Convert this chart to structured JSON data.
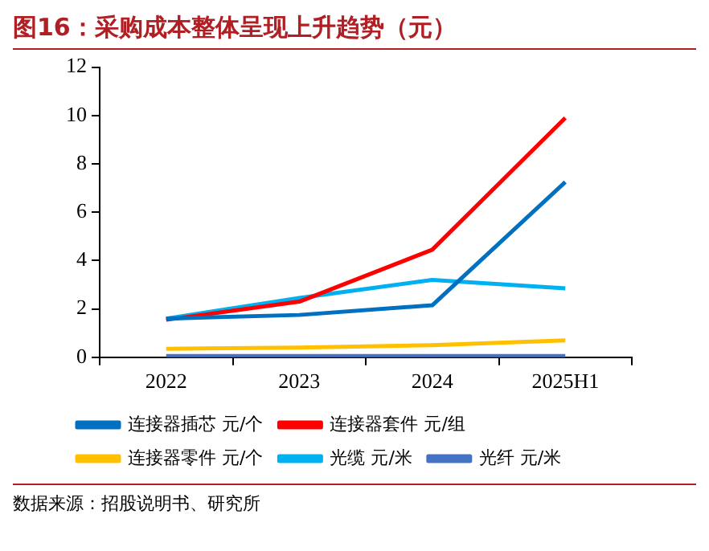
{
  "chart_data": {
    "type": "line",
    "title": "图16：采购成本整体呈现上升趋势（元）",
    "categories": [
      "2022",
      "2023",
      "2024",
      "2025H1"
    ],
    "series": [
      {
        "name": "连接器插芯 元/个",
        "color": "#0070c0",
        "values": [
          1.6,
          1.75,
          2.15,
          7.25
        ]
      },
      {
        "name": "连接器套件 元/组",
        "color": "#ff0000",
        "values": [
          1.55,
          2.3,
          4.45,
          9.9
        ]
      },
      {
        "name": "连接器零件 元/个",
        "color": "#ffc000",
        "values": [
          0.35,
          0.4,
          0.5,
          0.7
        ]
      },
      {
        "name": "光缆 元/米",
        "color": "#00b0f0",
        "values": [
          1.6,
          2.45,
          3.2,
          2.85
        ]
      },
      {
        "name": "光纤 元/米",
        "color": "#4472c4",
        "values": [
          0.05,
          0.05,
          0.05,
          0.05
        ]
      }
    ],
    "ylim": [
      0,
      12
    ],
    "yticks": [
      0,
      2,
      4,
      6,
      8,
      10,
      12
    ],
    "grid": false,
    "legend": "bottom",
    "marker": "none",
    "line_style": "solid",
    "annotations": [
      "数据来源：招股说明书、研究所"
    ]
  }
}
